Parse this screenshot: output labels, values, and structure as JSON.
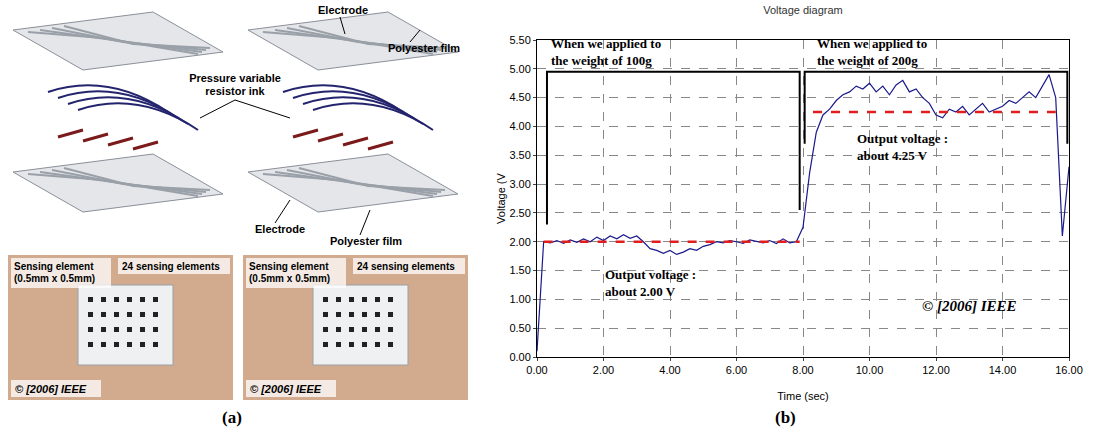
{
  "panel_labels": [
    "(a)",
    "(b)"
  ],
  "diagram": {
    "callouts": [
      "Electrode",
      "Polyester film",
      "Pressure variable resistor ink",
      "Electrode",
      "Polyester film"
    ],
    "photos": [
      {
        "sensing_element": "Sensing element (0.5mm x 0.5mm)",
        "count": "24 sensing elements",
        "copyright": "© [2006] IEEE"
      },
      {
        "sensing_element": "Sensing element (0.5mm x 0.5mm)",
        "count": "24 sensing elements",
        "copyright": "© [2006] IEEE"
      }
    ]
  },
  "chart_data": {
    "type": "line",
    "title": "Voltage diagram",
    "x_label": "Time (sec)",
    "y_label": "Voltage (V",
    "xlim": [
      0,
      16
    ],
    "xticks": [
      {
        "value": 0,
        "label": "0.00"
      },
      {
        "value": 2,
        "label": "2.00"
      },
      {
        "value": 4,
        "label": "4.00"
      },
      {
        "value": 6,
        "label": "6.00"
      },
      {
        "value": 8,
        "label": "8.00"
      },
      {
        "value": 10,
        "label": "10.00"
      },
      {
        "value": 12,
        "label": "12.00"
      },
      {
        "value": 14,
        "label": "14.00"
      },
      {
        "value": 16,
        "label": "16.00"
      }
    ],
    "ylim": [
      0,
      5.5
    ],
    "yticks": [
      {
        "value": 0,
        "label": "0.00"
      },
      {
        "value": 0.5,
        "label": "0.50"
      },
      {
        "value": 1,
        "label": "1.00"
      },
      {
        "value": 1.5,
        "label": "1.50"
      },
      {
        "value": 2,
        "label": "2.00"
      },
      {
        "value": 2.5,
        "label": "2.50"
      },
      {
        "value": 3,
        "label": "3.00"
      },
      {
        "value": 3.5,
        "label": "3.50"
      },
      {
        "value": 4,
        "label": "4.00"
      },
      {
        "value": 4.5,
        "label": "4.50"
      },
      {
        "value": 5,
        "label": "5.00"
      },
      {
        "value": 5.5,
        "label": "5.50"
      }
    ],
    "grid": true,
    "series": [
      {
        "color": "#1a1a8c",
        "line_style": "solid",
        "x": [
          0,
          0.2,
          0.4,
          0.6,
          0.8,
          1,
          1.2,
          1.4,
          1.6,
          1.8,
          2,
          2.2,
          2.4,
          2.6,
          2.8,
          3,
          3.2,
          3.4,
          3.6,
          3.8,
          4,
          4.2,
          4.4,
          4.6,
          4.8,
          5,
          5.2,
          5.4,
          5.6,
          5.8,
          6,
          6.2,
          6.4,
          6.6,
          6.8,
          7,
          7.2,
          7.4,
          7.6,
          7.8,
          8,
          8.2,
          8.4,
          8.6,
          8.8,
          9,
          9.2,
          9.4,
          9.6,
          9.8,
          10,
          10.2,
          10.4,
          10.6,
          10.8,
          11,
          11.2,
          11.4,
          11.6,
          11.8,
          12,
          12.2,
          12.4,
          12.6,
          12.8,
          13,
          13.2,
          13.4,
          13.6,
          13.8,
          14,
          14.2,
          14.4,
          14.6,
          14.8,
          15,
          15.2,
          15.4,
          15.6,
          15.8,
          16
        ],
        "values": [
          0.1,
          2.0,
          1.98,
          2.02,
          1.97,
          2.03,
          1.99,
          2.05,
          2.0,
          2.08,
          2.02,
          2.1,
          2.05,
          2.12,
          2.06,
          2.1,
          2.0,
          1.88,
          1.85,
          1.8,
          1.85,
          1.78,
          1.82,
          1.88,
          1.85,
          1.92,
          1.95,
          2.0,
          1.98,
          2.02,
          2.0,
          1.97,
          2.03,
          2.0,
          1.98,
          2.02,
          1.97,
          2.05,
          1.98,
          2.0,
          2.25,
          3.2,
          3.9,
          4.2,
          4.3,
          4.45,
          4.55,
          4.6,
          4.7,
          4.65,
          4.75,
          4.6,
          4.7,
          4.55,
          4.72,
          4.8,
          4.6,
          4.65,
          4.5,
          4.4,
          4.2,
          4.15,
          4.3,
          4.25,
          4.35,
          4.2,
          4.3,
          4.4,
          4.25,
          4.3,
          4.35,
          4.45,
          4.4,
          4.5,
          4.6,
          4.5,
          4.7,
          4.9,
          4.5,
          2.1,
          3.3
        ]
      },
      {
        "color": "#e01e1e",
        "line_style": "dashed",
        "x": [
          0.2,
          7.9
        ],
        "values": [
          2.0,
          2.0
        ]
      },
      {
        "color": "#e01e1e",
        "line_style": "dashed",
        "x": [
          8.3,
          15.6
        ],
        "values": [
          4.25,
          4.25
        ]
      }
    ],
    "annotations": [
      "When we applied to the weight of 100g",
      "When we applied to the weight of 200g",
      "Output voltage : about 2.00 V",
      "Output voltage : about 4.25 V",
      "© [2006] IEEE"
    ]
  }
}
